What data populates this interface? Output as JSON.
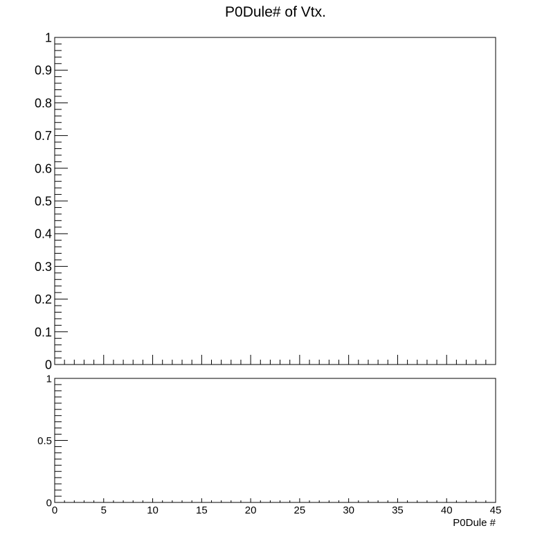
{
  "chart_data": [
    {
      "type": "bar",
      "title": "P0Dule# of Vtx.",
      "xlabel": "",
      "ylabel": "",
      "xlim": [
        0,
        45
      ],
      "ylim": [
        0,
        1
      ],
      "x_ticks": [
        "0",
        "5",
        "10",
        "15",
        "20",
        "25",
        "30",
        "35",
        "40",
        "45"
      ],
      "y_ticks": [
        "0",
        "0.1",
        "0.2",
        "0.3",
        "0.4",
        "0.5",
        "0.6",
        "0.7",
        "0.8",
        "0.9",
        "1"
      ],
      "series": [],
      "grid": false,
      "x_tick_labels_shown": false
    },
    {
      "type": "line",
      "title": "",
      "xlabel": "P0Dule #",
      "ylabel": "",
      "xlim": [
        0,
        45
      ],
      "ylim": [
        0,
        1
      ],
      "x_ticks": [
        "0",
        "5",
        "10",
        "15",
        "20",
        "25",
        "30",
        "35",
        "40",
        "45"
      ],
      "y_ticks": [
        "0",
        "0.5",
        "1"
      ],
      "series": [],
      "grid": false,
      "x_tick_labels_shown": true
    }
  ]
}
